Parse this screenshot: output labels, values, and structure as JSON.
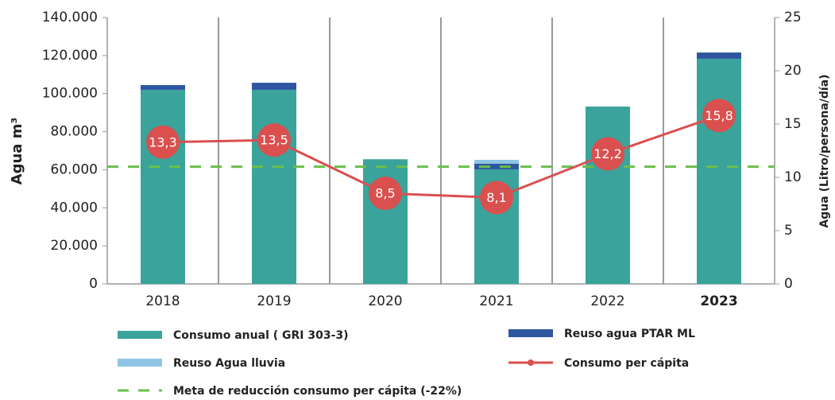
{
  "chart_data": {
    "type": "bar_line",
    "y_label": "Agua m³",
    "y2_label": "Agua (Litro/persona/día)",
    "categories": [
      "2018",
      "2019",
      "2020",
      "2021",
      "2022",
      "2023"
    ],
    "ylim": [
      0,
      140000
    ],
    "yticks": [
      0,
      {
        "value": 20000,
        "label": "20.000"
      },
      {
        "value": 40000,
        "label": "40.000"
      },
      {
        "value": 60000,
        "label": "60.000"
      },
      {
        "value": 80000,
        "label": "80.000"
      },
      {
        "value": 100000,
        "label": "100.000"
      },
      {
        "value": 120000,
        "label": "120.000"
      },
      {
        "value": 140000,
        "label": "140.000"
      }
    ],
    "y2lim": [
      0,
      25
    ],
    "y2ticks": [
      0,
      5,
      10,
      15,
      20,
      25
    ],
    "series": [
      {
        "name": "Consumo anual ( GRI 303-3)",
        "color": "#3aa39c",
        "stack": true,
        "values": [
          102000,
          102000,
          65500,
          60200,
          93200,
          118300
        ]
      },
      {
        "name": "Reuso agua PTAR ML",
        "color": "#2f56a0",
        "stack": true,
        "values": [
          2500,
          3700,
          null,
          3000,
          null,
          3300
        ]
      },
      {
        "name": "Reuso Agua lluvia",
        "color": "#8ec5e6",
        "stack": true,
        "values": [
          null,
          null,
          null,
          2000,
          null,
          null
        ]
      },
      {
        "name": "Consumo per cápita",
        "color": "#d9504f",
        "axis": "y2",
        "values": [
          13.3,
          13.5,
          8.5,
          8.1,
          12.2,
          15.8
        ],
        "value_labels": [
          "13,3",
          "13,5",
          "8,5",
          "8,1",
          "12,2",
          "15,8"
        ]
      }
    ],
    "reference_line": {
      "name": "Meta de reducción consumo per cápita (-22%)",
      "value": 11,
      "axis": "y2",
      "color": "#6abf4b"
    }
  }
}
